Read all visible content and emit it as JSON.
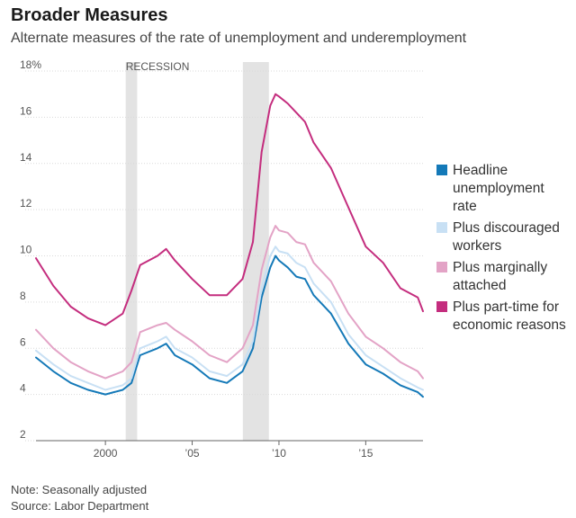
{
  "header": {
    "title": "Broader Measures",
    "subtitle": "Alternate measures of the rate of unemployment and underemployment"
  },
  "footer": {
    "note": "Note: Seasonally adjusted",
    "source": "Source: Labor Department"
  },
  "colors": {
    "headline": "#1479b8",
    "discouraged": "#c8e0f4",
    "marginal": "#e3a3c6",
    "parttime": "#c42d7e",
    "recession": "#e3e3e3"
  },
  "chart_data": {
    "type": "line",
    "title": "Broader Measures",
    "subtitle": "Alternate measures of the rate of unemployment and underemployment",
    "xlim": [
      1996,
      2018.3
    ],
    "ylim": [
      2,
      18
    ],
    "y_ticks": [
      2,
      4,
      6,
      8,
      10,
      12,
      14,
      16,
      18
    ],
    "y_tick_labels": [
      "2",
      "4",
      "6",
      "8",
      "10",
      "12",
      "14",
      "16",
      "18%"
    ],
    "x_ticks": [
      2000,
      2005,
      2010,
      2015
    ],
    "x_tick_labels": [
      "2000",
      "’05",
      "’10",
      "’15"
    ],
    "grid": "horizontal",
    "recession_label": "RECESSION",
    "recessions": [
      [
        2001.17,
        2001.83
      ],
      [
        2007.92,
        2009.42
      ]
    ],
    "legend_position": "right",
    "series": [
      {
        "key": "headline",
        "name": "Headline unemployment rate",
        "x": [
          1996,
          1997,
          1998,
          1999,
          2000,
          2001,
          2001.5,
          2002,
          2003,
          2003.5,
          2004,
          2005,
          2006,
          2007,
          2007.9,
          2008.5,
          2009,
          2009.5,
          2009.8,
          2010,
          2010.5,
          2011,
          2011.5,
          2012,
          2013,
          2014,
          2015,
          2016,
          2017,
          2018,
          2018.3
        ],
        "values": [
          5.6,
          5.0,
          4.5,
          4.2,
          4.0,
          4.2,
          4.5,
          5.7,
          6.0,
          6.2,
          5.7,
          5.3,
          4.7,
          4.5,
          5.0,
          6.0,
          8.2,
          9.5,
          10.0,
          9.8,
          9.5,
          9.1,
          9.0,
          8.3,
          7.5,
          6.2,
          5.3,
          4.9,
          4.4,
          4.1,
          3.9
        ]
      },
      {
        "key": "discouraged",
        "name": "Plus discouraged workers",
        "x": [
          1996,
          1997,
          1998,
          1999,
          2000,
          2001,
          2001.5,
          2002,
          2003,
          2003.5,
          2004,
          2005,
          2006,
          2007,
          2007.9,
          2008.5,
          2009,
          2009.5,
          2009.8,
          2010,
          2010.5,
          2011,
          2011.5,
          2012,
          2013,
          2014,
          2015,
          2016,
          2017,
          2018,
          2018.3
        ],
        "values": [
          5.9,
          5.3,
          4.8,
          4.5,
          4.2,
          4.4,
          4.7,
          6.0,
          6.3,
          6.5,
          6.0,
          5.6,
          5.0,
          4.8,
          5.3,
          6.3,
          8.6,
          10.0,
          10.4,
          10.2,
          10.1,
          9.7,
          9.5,
          8.8,
          8.0,
          6.6,
          5.7,
          5.2,
          4.7,
          4.3,
          4.2
        ]
      },
      {
        "key": "marginal",
        "name": "Plus marginally attached",
        "x": [
          1996,
          1997,
          1998,
          1999,
          2000,
          2001,
          2001.5,
          2002,
          2003,
          2003.5,
          2004,
          2005,
          2006,
          2007,
          2007.9,
          2008.5,
          2009,
          2009.5,
          2009.8,
          2010,
          2010.5,
          2011,
          2011.5,
          2012,
          2013,
          2014,
          2015,
          2016,
          2017,
          2018,
          2018.3
        ],
        "values": [
          6.8,
          6.0,
          5.4,
          5.0,
          4.7,
          5.0,
          5.4,
          6.7,
          7.0,
          7.1,
          6.8,
          6.3,
          5.7,
          5.4,
          6.0,
          7.0,
          9.4,
          10.8,
          11.3,
          11.1,
          11.0,
          10.6,
          10.5,
          9.7,
          8.9,
          7.5,
          6.5,
          6.0,
          5.4,
          5.0,
          4.7
        ]
      },
      {
        "key": "parttime",
        "name": "Plus part-time for economic reasons",
        "x": [
          1996,
          1997,
          1998,
          1999,
          2000,
          2001,
          2001.5,
          2002,
          2003,
          2003.5,
          2004,
          2005,
          2006,
          2007,
          2007.9,
          2008.5,
          2009,
          2009.5,
          2009.8,
          2010,
          2010.5,
          2011,
          2011.5,
          2012,
          2013,
          2014,
          2015,
          2016,
          2017,
          2018,
          2018.3
        ],
        "values": [
          9.9,
          8.7,
          7.8,
          7.3,
          7.0,
          7.5,
          8.5,
          9.6,
          10.0,
          10.3,
          9.8,
          9.0,
          8.3,
          8.3,
          9.0,
          10.6,
          14.5,
          16.5,
          17.0,
          16.9,
          16.6,
          16.2,
          15.8,
          14.9,
          13.8,
          12.1,
          10.4,
          9.7,
          8.6,
          8.2,
          7.6
        ]
      }
    ]
  },
  "legend": [
    {
      "key": "headline",
      "label": "Headline unemployment rate"
    },
    {
      "key": "discouraged",
      "label": "Plus discouraged workers"
    },
    {
      "key": "marginal",
      "label": "Plus marginally attached"
    },
    {
      "key": "parttime",
      "label": "Plus part-time for economic reasons"
    }
  ]
}
